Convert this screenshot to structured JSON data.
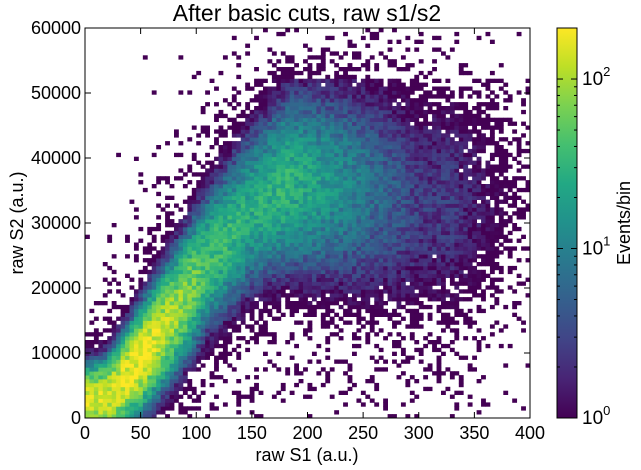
{
  "chart_data": {
    "type": "heatmap",
    "title": "After basic cuts, raw s1/s2",
    "xlabel": "raw S1 (a.u.)",
    "ylabel": "raw S2 (a.u.)",
    "xlim": [
      0,
      400
    ],
    "ylim": [
      0,
      60000
    ],
    "xticks": [
      "0",
      "50",
      "100",
      "150",
      "200",
      "250",
      "300",
      "350",
      "400"
    ],
    "yticks": [
      "0",
      "10000",
      "20000",
      "30000",
      "40000",
      "50000",
      "60000"
    ],
    "bins": {
      "x": 100,
      "y": 100
    },
    "colorbar": {
      "label": "Events/bin",
      "scale": "log",
      "range": [
        1,
        200
      ],
      "colormap": "viridis",
      "tick_labels": [
        {
          "base": "10",
          "exp": "0",
          "value": 1
        },
        {
          "base": "10",
          "exp": "1",
          "value": 10
        },
        {
          "base": "10",
          "exp": "2",
          "value": 100
        }
      ]
    },
    "density_ridge": [
      {
        "s1": 20,
        "s2": 3000,
        "peak_count": 150
      },
      {
        "s1": 50,
        "s2": 9000,
        "peak_count": 200
      },
      {
        "s1": 80,
        "s2": 16000,
        "peak_count": 100
      },
      {
        "s1": 110,
        "s2": 24000,
        "peak_count": 40
      },
      {
        "s1": 150,
        "s2": 32000,
        "peak_count": 25
      },
      {
        "s1": 180,
        "s2": 36000,
        "peak_count": 30
      },
      {
        "s1": 220,
        "s2": 36000,
        "peak_count": 15
      },
      {
        "s1": 260,
        "s2": 35000,
        "peak_count": 6
      },
      {
        "s1": 300,
        "s2": 33000,
        "peak_count": 2
      }
    ],
    "grid": false,
    "colors": {
      "low": "#440154",
      "mid": "#21918c",
      "high": "#fde725"
    }
  }
}
